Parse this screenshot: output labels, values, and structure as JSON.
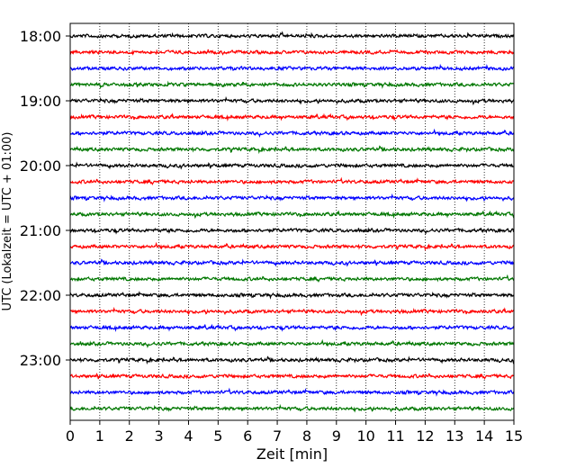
{
  "chart_data": {
    "type": "line",
    "title": "",
    "xlabel": "Zeit  [min]",
    "ylabel": "UTC (Lokalzeit = UTC + 01:00)",
    "xlim": [
      0,
      15
    ],
    "x_ticks": [
      0,
      1,
      2,
      3,
      4,
      5,
      6,
      7,
      8,
      9,
      10,
      11,
      12,
      13,
      14,
      15
    ],
    "x_tick_labels": [
      "0",
      "1",
      "2",
      "3",
      "4",
      "5",
      "6",
      "7",
      "8",
      "9",
      "10",
      "11",
      "12",
      "13",
      "14",
      "15"
    ],
    "y_tick_labels": [
      "18:00",
      "19:00",
      "20:00",
      "21:00",
      "22:00",
      "23:00"
    ],
    "grid": "vertical dotted",
    "trace_minutes": 15,
    "trace_color_cycle": [
      "#000000",
      "#ff0000",
      "#0000ff",
      "#007700"
    ],
    "series": [
      {
        "start": "18:00",
        "color": "#000000"
      },
      {
        "start": "18:15",
        "color": "#ff0000"
      },
      {
        "start": "18:30",
        "color": "#0000ff"
      },
      {
        "start": "18:45",
        "color": "#007700"
      },
      {
        "start": "19:00",
        "color": "#000000"
      },
      {
        "start": "19:15",
        "color": "#ff0000"
      },
      {
        "start": "19:30",
        "color": "#0000ff"
      },
      {
        "start": "19:45",
        "color": "#007700"
      },
      {
        "start": "20:00",
        "color": "#000000"
      },
      {
        "start": "20:15",
        "color": "#ff0000"
      },
      {
        "start": "20:30",
        "color": "#0000ff"
      },
      {
        "start": "20:45",
        "color": "#007700"
      },
      {
        "start": "21:00",
        "color": "#000000"
      },
      {
        "start": "21:15",
        "color": "#ff0000"
      },
      {
        "start": "21:30",
        "color": "#0000ff"
      },
      {
        "start": "21:45",
        "color": "#007700"
      },
      {
        "start": "22:00",
        "color": "#000000"
      },
      {
        "start": "22:15",
        "color": "#ff0000"
      },
      {
        "start": "22:30",
        "color": "#0000ff"
      },
      {
        "start": "22:45",
        "color": "#007700"
      },
      {
        "start": "23:00",
        "color": "#000000"
      },
      {
        "start": "23:15",
        "color": "#ff0000"
      },
      {
        "start": "23:30",
        "color": "#0000ff"
      },
      {
        "start": "23:45",
        "color": "#007700"
      }
    ]
  }
}
